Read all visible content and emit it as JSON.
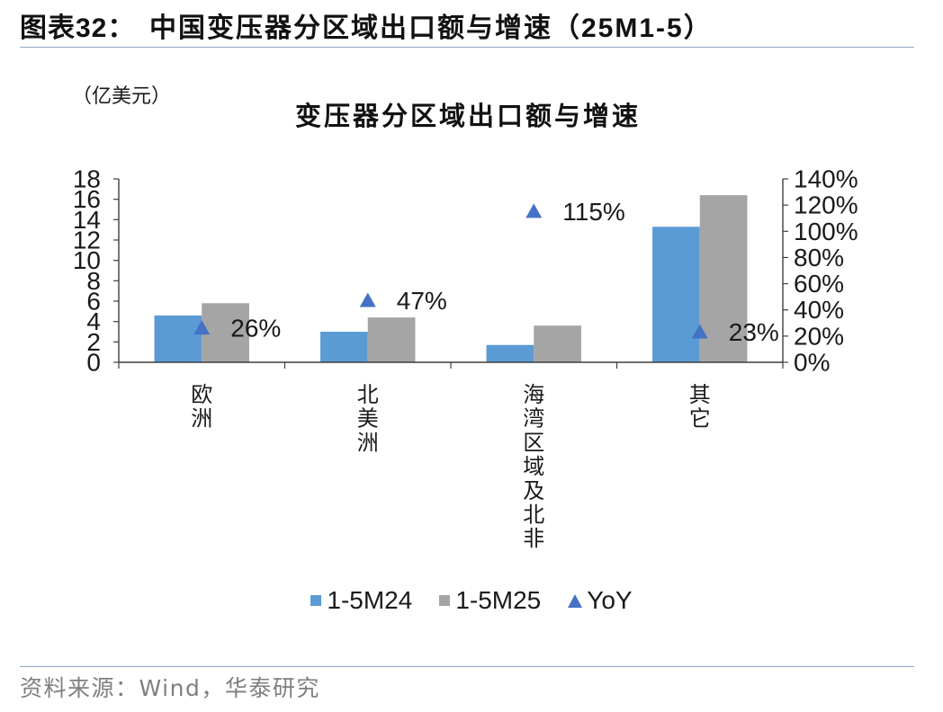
{
  "header": {
    "label": "图表32：",
    "title": "中国变压器分区域出口额与增速（25M1-5）"
  },
  "chart_data": {
    "type": "bar",
    "title": "变压器分区域出口额与增速",
    "ylabel": "（亿美元）",
    "categories": [
      "欧洲",
      "北美洲",
      "海湾区域及北非",
      "其它"
    ],
    "series": [
      {
        "name": "1-5M24",
        "type": "bar",
        "axis": "left",
        "color": "#5B9BD5",
        "values": [
          4.6,
          3.0,
          1.7,
          13.3
        ]
      },
      {
        "name": "1-5M25",
        "type": "bar",
        "axis": "left",
        "color": "#A5A5A5",
        "values": [
          5.8,
          4.4,
          3.6,
          16.4
        ]
      },
      {
        "name": "YoY",
        "type": "scatter",
        "axis": "right",
        "marker": "triangle",
        "color": "#4472C4",
        "values": [
          26,
          47,
          115,
          23
        ],
        "labels": [
          "26%",
          "47%",
          "115%",
          "23%"
        ]
      }
    ],
    "ylim": [
      0,
      18
    ],
    "y2lim": [
      0,
      140
    ],
    "yticks_left": [
      "0",
      "2",
      "4",
      "6",
      "8",
      "10",
      "12",
      "14",
      "16",
      "18"
    ],
    "yticks_right": [
      "0%",
      "20%",
      "40%",
      "60%",
      "80%",
      "100%",
      "120%",
      "140%"
    ],
    "legend": "bottom",
    "grid": false
  },
  "source": "资料来源：Wind，华泰研究",
  "colors": {
    "rule": "#8DA7C3",
    "axis": "#3F3F3F",
    "source_text": "#7F7F7F"
  }
}
